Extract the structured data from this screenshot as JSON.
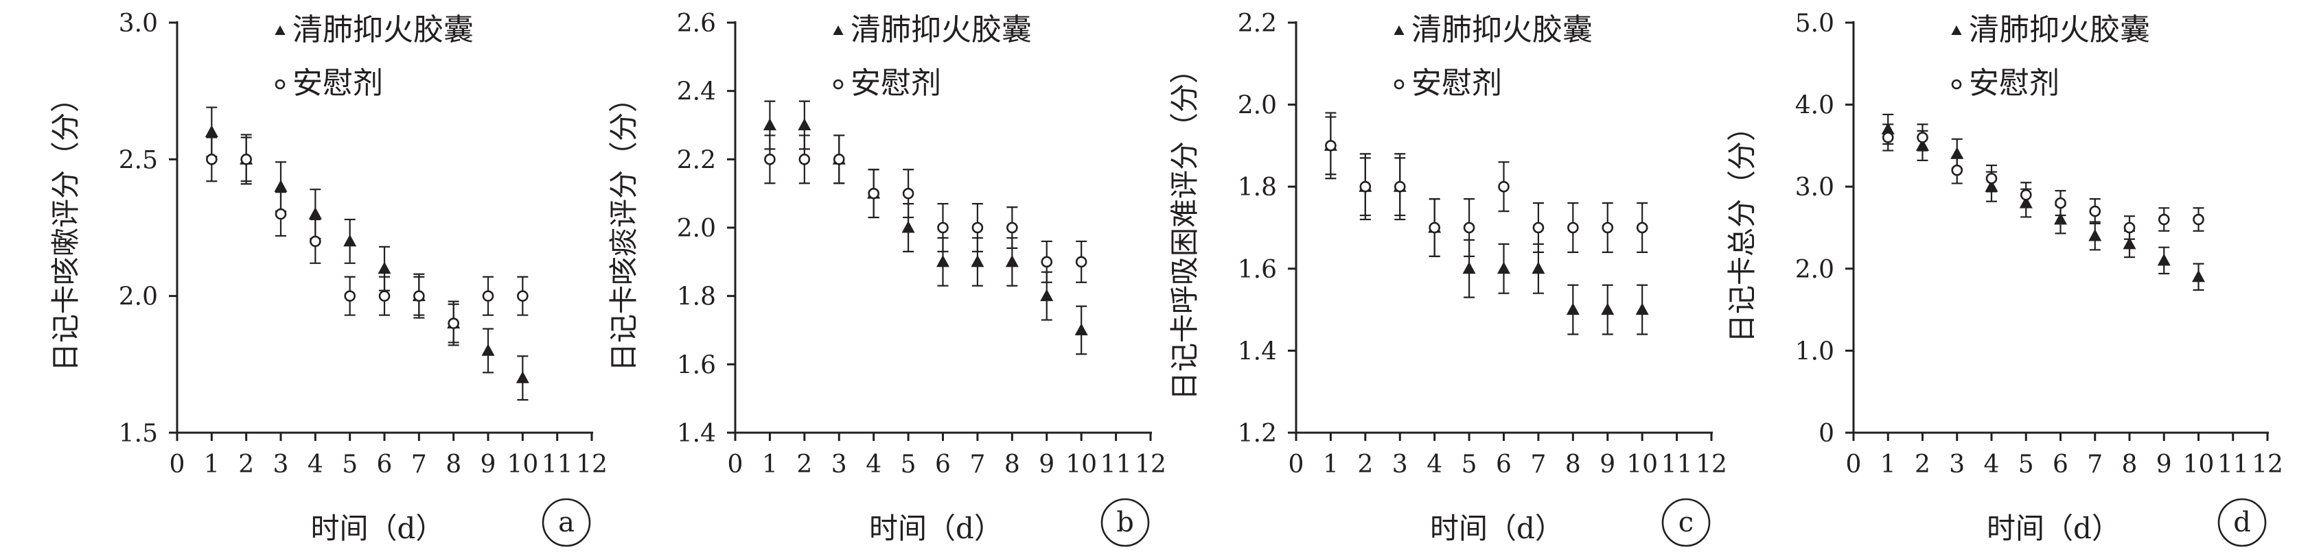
{
  "chart_data": [
    {
      "type": "scatter",
      "panel_label": "a",
      "xlabel": "时间（d）",
      "ylabel": "日记卡咳嗽评分（分）",
      "xlim": [
        0,
        12
      ],
      "ylim": [
        1.5,
        3.0
      ],
      "x_ticks": [
        0,
        1,
        2,
        3,
        4,
        5,
        6,
        7,
        8,
        9,
        10,
        11,
        12
      ],
      "y_ticks": [
        "1.5",
        "2.0",
        "2.5",
        "3.0"
      ],
      "legend_position": "top-right",
      "series": [
        {
          "name": "清肺抑火胶囊",
          "marker": "triangle",
          "x": [
            1,
            2,
            3,
            4,
            5,
            6,
            7,
            8,
            9,
            10
          ],
          "y": [
            2.6,
            2.5,
            2.4,
            2.3,
            2.2,
            2.1,
            2.0,
            1.9,
            1.8,
            1.7
          ],
          "error": [
            0.09,
            0.09,
            0.09,
            0.09,
            0.08,
            0.08,
            0.08,
            0.08,
            0.08,
            0.08
          ]
        },
        {
          "name": "安慰剂",
          "marker": "circle",
          "x": [
            1,
            2,
            3,
            4,
            5,
            6,
            7,
            8,
            9,
            10
          ],
          "y": [
            2.5,
            2.5,
            2.3,
            2.2,
            2.0,
            2.0,
            2.0,
            1.9,
            2.0,
            2.0
          ],
          "error": [
            0.08,
            0.08,
            0.08,
            0.08,
            0.07,
            0.07,
            0.07,
            0.07,
            0.07,
            0.07
          ]
        }
      ]
    },
    {
      "type": "scatter",
      "panel_label": "b",
      "xlabel": "时间（d）",
      "ylabel": "日记卡咳痰评分（分）",
      "xlim": [
        0,
        12
      ],
      "ylim": [
        1.4,
        2.6
      ],
      "x_ticks": [
        0,
        1,
        2,
        3,
        4,
        5,
        6,
        7,
        8,
        9,
        10,
        11,
        12
      ],
      "y_ticks": [
        "1.4",
        "1.6",
        "1.8",
        "2.0",
        "2.2",
        "2.4",
        "2.6"
      ],
      "legend_position": "top-right",
      "series": [
        {
          "name": "清肺抑火胶囊",
          "marker": "triangle",
          "x": [
            1,
            2,
            3,
            4,
            5,
            6,
            7,
            8,
            9,
            10
          ],
          "y": [
            2.3,
            2.3,
            2.2,
            2.1,
            2.0,
            1.9,
            1.9,
            1.9,
            1.8,
            1.7
          ],
          "error": [
            0.07,
            0.07,
            0.07,
            0.07,
            0.07,
            0.07,
            0.07,
            0.07,
            0.07,
            0.07
          ]
        },
        {
          "name": "安慰剂",
          "marker": "circle",
          "x": [
            1,
            2,
            3,
            4,
            5,
            6,
            7,
            8,
            9,
            10
          ],
          "y": [
            2.2,
            2.2,
            2.2,
            2.1,
            2.1,
            2.0,
            2.0,
            2.0,
            1.9,
            1.9
          ],
          "error": [
            0.07,
            0.07,
            0.07,
            0.07,
            0.07,
            0.07,
            0.07,
            0.06,
            0.06,
            0.06
          ]
        }
      ]
    },
    {
      "type": "scatter",
      "panel_label": "c",
      "xlabel": "时间（d）",
      "ylabel": "日记卡呼吸困难评分（分）",
      "xlim": [
        0,
        12
      ],
      "ylim": [
        1.2,
        2.2
      ],
      "x_ticks": [
        0,
        1,
        2,
        3,
        4,
        5,
        6,
        7,
        8,
        9,
        10,
        11,
        12
      ],
      "y_ticks": [
        "1.2",
        "1.4",
        "1.6",
        "1.8",
        "2.0",
        "2.2"
      ],
      "legend_position": "top-right",
      "series": [
        {
          "name": "清肺抑火胶囊",
          "marker": "triangle",
          "x": [
            1,
            2,
            3,
            4,
            5,
            6,
            7,
            8,
            9,
            10
          ],
          "y": [
            1.9,
            1.8,
            1.8,
            1.7,
            1.6,
            1.6,
            1.6,
            1.5,
            1.5,
            1.5
          ],
          "error": [
            0.08,
            0.08,
            0.08,
            0.07,
            0.07,
            0.06,
            0.06,
            0.06,
            0.06,
            0.06
          ]
        },
        {
          "name": "安慰剂",
          "marker": "circle",
          "x": [
            1,
            2,
            3,
            4,
            5,
            6,
            7,
            8,
            9,
            10
          ],
          "y": [
            1.9,
            1.8,
            1.8,
            1.7,
            1.7,
            1.8,
            1.7,
            1.7,
            1.7,
            1.7
          ],
          "error": [
            0.07,
            0.07,
            0.07,
            0.07,
            0.07,
            0.06,
            0.06,
            0.06,
            0.06,
            0.06
          ]
        }
      ]
    },
    {
      "type": "scatter",
      "panel_label": "d",
      "xlabel": "时间（d）",
      "ylabel": "日记卡总分（分）",
      "xlim": [
        0,
        12
      ],
      "ylim": [
        0,
        5
      ],
      "x_ticks": [
        0,
        1,
        2,
        3,
        4,
        5,
        6,
        7,
        8,
        9,
        10,
        11,
        12
      ],
      "y_ticks": [
        "0",
        "1.0",
        "2.0",
        "3.0",
        "4.0",
        "5.0"
      ],
      "legend_position": "top-right",
      "series": [
        {
          "name": "清肺抑火胶囊",
          "marker": "triangle",
          "x": [
            1,
            2,
            3,
            4,
            5,
            6,
            7,
            8,
            9,
            10
          ],
          "y": [
            3.7,
            3.5,
            3.4,
            3.0,
            2.8,
            2.6,
            2.4,
            2.3,
            2.1,
            1.9
          ],
          "error": [
            0.18,
            0.18,
            0.18,
            0.18,
            0.17,
            0.17,
            0.17,
            0.16,
            0.16,
            0.16
          ]
        },
        {
          "name": "安慰剂",
          "marker": "circle",
          "x": [
            1,
            2,
            3,
            4,
            5,
            6,
            7,
            8,
            9,
            10
          ],
          "y": [
            3.6,
            3.6,
            3.2,
            3.1,
            2.9,
            2.8,
            2.7,
            2.5,
            2.6,
            2.6
          ],
          "error": [
            0.16,
            0.16,
            0.16,
            0.16,
            0.15,
            0.15,
            0.15,
            0.14,
            0.14,
            0.14
          ]
        }
      ]
    }
  ]
}
